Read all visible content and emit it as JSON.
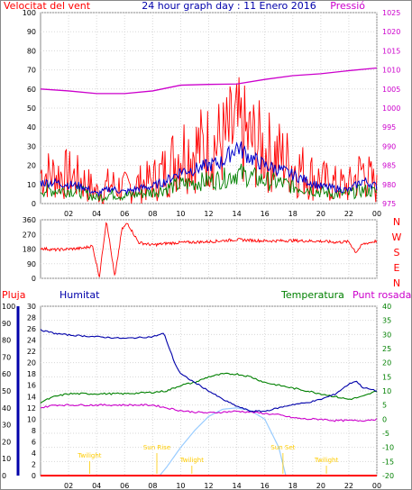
{
  "colors": {
    "wind": "#ff0000",
    "gust_avg": "#0000cc",
    "wind_green": "#008000",
    "pressure": "#cc00cc",
    "direction": "#ff0000",
    "humidity": "#0000aa",
    "temperature": "#008000",
    "dewpoint": "#cc00cc",
    "rain": "#ff0000",
    "solar": "#99ccff",
    "sun_labels": "#ffcc00",
    "grid": "#d8d8d8",
    "frame": "#888888"
  },
  "chart_data": [
    {
      "type": "line",
      "title": "24 hour graph day : 11 Enero 2016",
      "left_axis_label": "Velocitat del vent",
      "right_axis_label": "Pressió",
      "x_ticks": [
        "02",
        "04",
        "06",
        "08",
        "10",
        "12",
        "14",
        "16",
        "18",
        "20",
        "22",
        "00"
      ],
      "y_left_ticks": [
        "0",
        "10",
        "20",
        "30",
        "40",
        "50",
        "60",
        "70",
        "80",
        "90",
        "100"
      ],
      "y_left_range": [
        0,
        100
      ],
      "y_right_ticks": [
        "975",
        "980",
        "985",
        "990",
        "995",
        "1000",
        "1005",
        "1010",
        "1015",
        "1020",
        "1025"
      ],
      "y_right_range": [
        975,
        1025
      ],
      "series": [
        {
          "key": "gust",
          "hours": [
            0,
            1,
            2,
            3,
            4,
            5,
            6,
            7,
            8,
            9,
            10,
            11,
            12,
            13,
            14,
            15,
            16,
            17,
            18,
            19,
            20,
            21,
            22,
            23,
            24
          ],
          "values": [
            16,
            15,
            15,
            12,
            6,
            10,
            8,
            10,
            12,
            18,
            28,
            28,
            30,
            32,
            38,
            33,
            28,
            25,
            20,
            16,
            12,
            10,
            9,
            18,
            8
          ]
        },
        {
          "key": "avg",
          "hours": [
            0,
            1,
            2,
            3,
            4,
            5,
            6,
            7,
            8,
            9,
            10,
            11,
            12,
            13,
            14,
            15,
            16,
            17,
            18,
            19,
            20,
            21,
            22,
            23,
            24
          ],
          "values": [
            11,
            11,
            10,
            9,
            5,
            8,
            6,
            8,
            9,
            12,
            17,
            18,
            20,
            22,
            30,
            24,
            20,
            18,
            15,
            12,
            9,
            8,
            7,
            12,
            9
          ]
        },
        {
          "key": "min",
          "hours": [
            0,
            1,
            2,
            3,
            4,
            5,
            6,
            7,
            8,
            9,
            10,
            11,
            12,
            13,
            14,
            15,
            16,
            17,
            18,
            19,
            20,
            21,
            22,
            23,
            24
          ],
          "values": [
            7,
            7,
            7,
            6,
            3,
            5,
            4,
            5,
            6,
            8,
            10,
            11,
            12,
            13,
            16,
            14,
            12,
            11,
            9,
            8,
            6,
            5,
            5,
            7,
            6
          ]
        },
        {
          "key": "pressure",
          "hours": [
            0,
            2,
            4,
            6,
            8,
            10,
            12,
            14,
            16,
            18,
            20,
            22,
            24
          ],
          "values": [
            1005,
            1004.5,
            1003.8,
            1003.8,
            1004.5,
            1006,
            1006.2,
            1006.3,
            1007.5,
            1008.5,
            1009,
            1009.8,
            1010.5
          ]
        }
      ]
    },
    {
      "type": "line",
      "y_ticks": [
        "360",
        "270",
        "180",
        "90",
        "0"
      ],
      "y_range": [
        0,
        360
      ],
      "compass": [
        "N",
        "W",
        "S",
        "E",
        "N"
      ],
      "series": [
        {
          "key": "direction",
          "hours": [
            0,
            1,
            2,
            3,
            3.7,
            4.2,
            4.7,
            5.3,
            5.8,
            6.2,
            7,
            8,
            9,
            10,
            12,
            14,
            16,
            18,
            20,
            21,
            22,
            22.5,
            23,
            24
          ],
          "values": [
            185,
            175,
            180,
            185,
            200,
            10,
            360,
            5,
            300,
            340,
            220,
            205,
            215,
            220,
            225,
            238,
            230,
            232,
            228,
            222,
            225,
            160,
            210,
            230
          ]
        }
      ]
    },
    {
      "type": "line",
      "top_labels": {
        "rain": "Pluja",
        "humidity": "Humitat",
        "temperature": "Temperatura",
        "dewpoint": "Punt rosada"
      },
      "y_rain_ticks": [
        "30",
        "28",
        "26",
        "24",
        "22",
        "20",
        "18",
        "16",
        "14",
        "12",
        "10",
        "8",
        "6",
        "4",
        "2",
        "0"
      ],
      "y_hum_ticks": [
        "100",
        "90",
        "80",
        "70",
        "60",
        "50",
        "40",
        "30",
        "20",
        "10",
        "0"
      ],
      "y_temp_ticks": [
        "40",
        "35",
        "30",
        "25",
        "20",
        "15",
        "10",
        "5",
        "0",
        "-5",
        "-10",
        "-15",
        "-20"
      ],
      "y_temp_range": [
        -20,
        40
      ],
      "x_ticks": [
        "02",
        "04",
        "06",
        "08",
        "10",
        "12",
        "14",
        "16",
        "18",
        "20",
        "22",
        "00"
      ],
      "sun_labels": {
        "twilight": "Twilight",
        "sunrise": "Sun Rise",
        "sunset": "Sun Set"
      },
      "series": [
        {
          "key": "humidity",
          "hours": [
            0,
            1,
            2,
            4,
            6,
            8,
            8.8,
            9.2,
            9.6,
            10,
            11,
            12,
            13,
            14,
            15,
            16,
            17,
            18,
            19,
            20,
            21,
            22,
            22.5,
            23,
            24
          ],
          "values": [
            86,
            84,
            83,
            82,
            81,
            82,
            84,
            75,
            66,
            60,
            55,
            50,
            45,
            41,
            38,
            38,
            40,
            42,
            43,
            45,
            48,
            54,
            56,
            52,
            50
          ]
        },
        {
          "key": "temperature",
          "hours": [
            0,
            1,
            2,
            4,
            6,
            8,
            9,
            10,
            11,
            12,
            13,
            14,
            15,
            16,
            17,
            18,
            19,
            20,
            21,
            22,
            23,
            24
          ],
          "values": [
            6,
            8,
            9,
            9,
            9,
            9.5,
            10,
            12,
            13,
            15,
            16,
            16,
            15,
            13,
            12,
            11,
            10,
            9,
            8,
            7,
            8,
            10
          ]
        },
        {
          "key": "dewpoint",
          "hours": [
            0,
            1,
            2,
            4,
            6,
            8,
            9,
            10,
            11,
            12,
            13,
            14,
            15,
            16,
            17,
            18,
            19,
            20,
            21,
            22,
            23,
            24
          ],
          "values": [
            4,
            5,
            5,
            5,
            5,
            5,
            4,
            3,
            2.5,
            2.2,
            2.5,
            2.8,
            2.5,
            2,
            1.5,
            0.5,
            0,
            0,
            -0.5,
            -0.5,
            -0.5,
            0
          ]
        },
        {
          "key": "solar",
          "hours": [
            8.5,
            9,
            10,
            11,
            12,
            13,
            14,
            15,
            16,
            17,
            17.5
          ],
          "values": [
            -20,
            -17,
            -10,
            -4,
            1,
            3.5,
            4,
            3,
            0,
            -10,
            -20
          ]
        },
        {
          "key": "rain",
          "hours": [
            0,
            24
          ],
          "values": [
            0,
            0
          ]
        }
      ]
    }
  ]
}
